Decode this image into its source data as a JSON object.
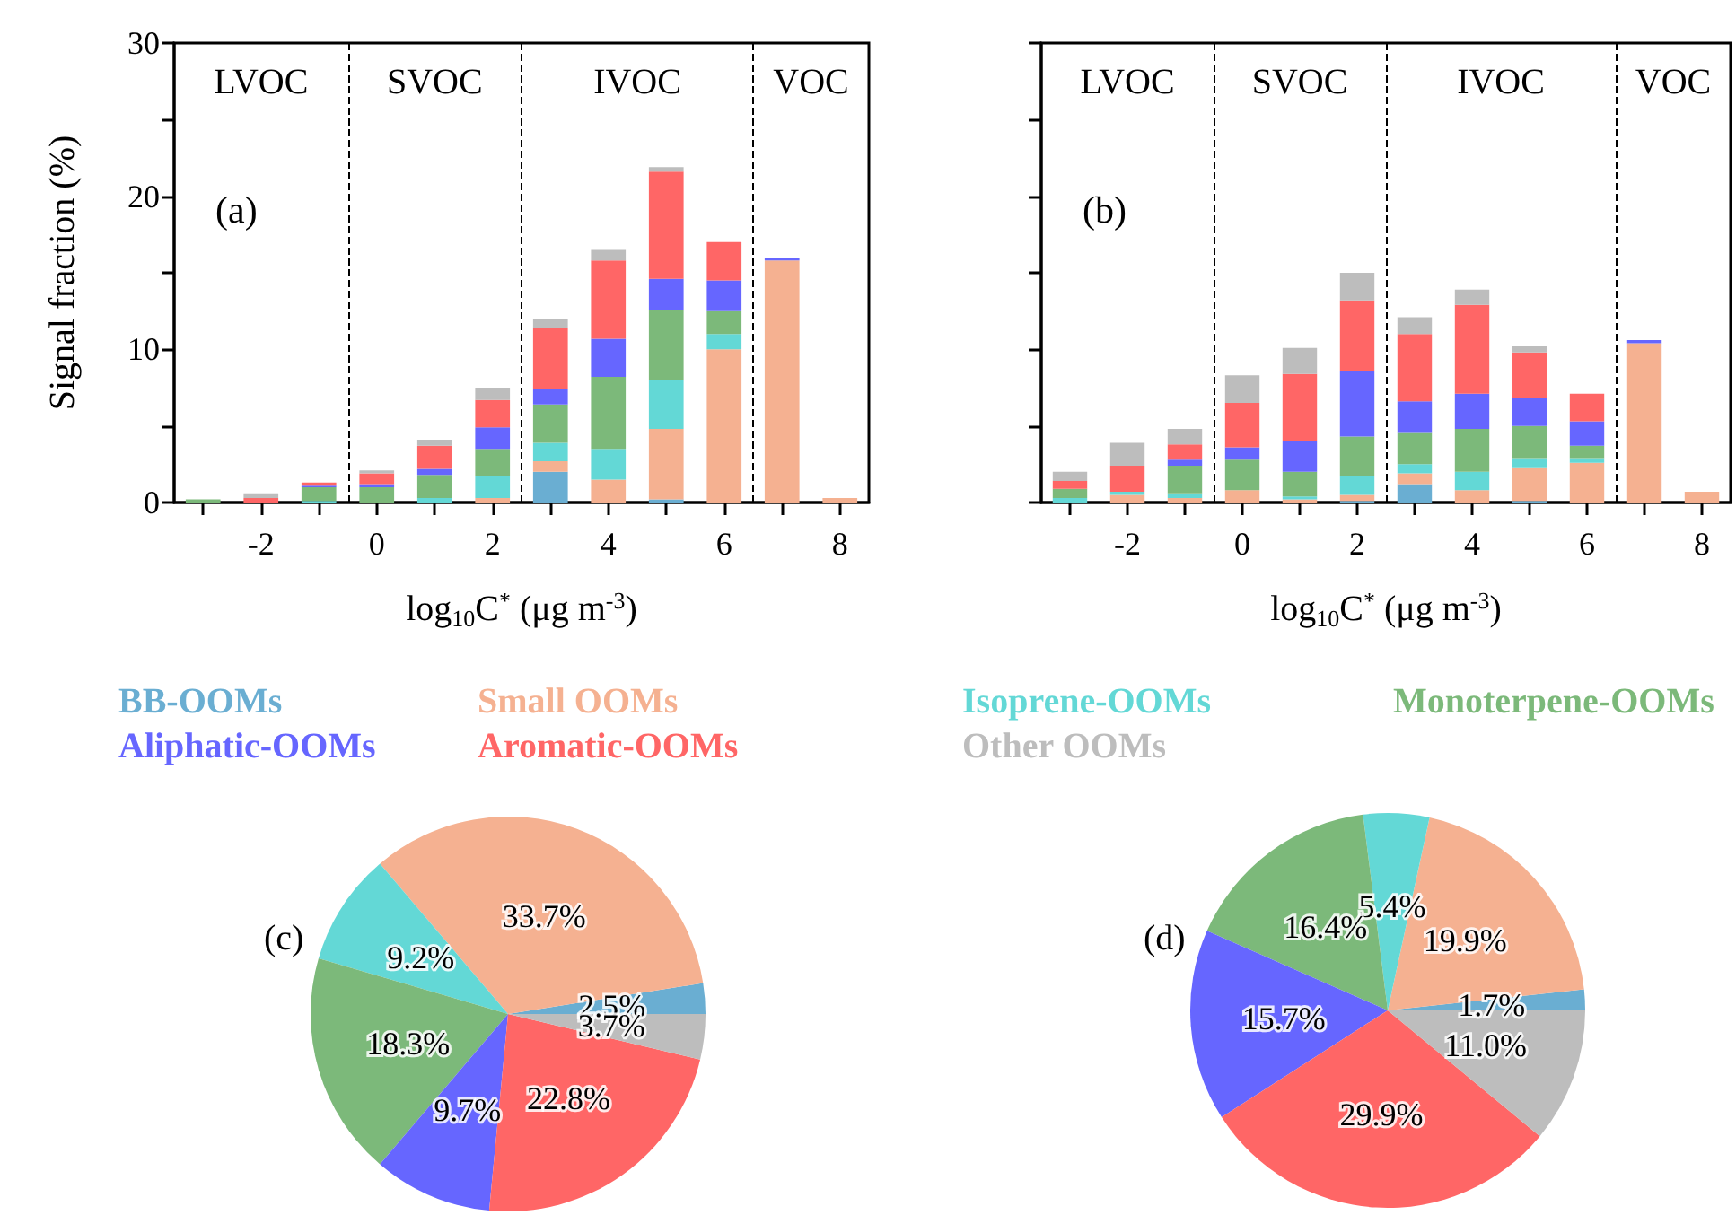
{
  "chart_data": [
    {
      "type": "bar",
      "title": "(a)",
      "xlabel": "log$_{10}$C$^{*}$ (μg m$^{-3}$)",
      "ylabel": "Signal fraction (%)",
      "stacked": true,
      "x": [
        -3,
        -2,
        -1,
        0,
        1,
        2,
        3,
        4,
        5,
        6,
        7,
        8
      ],
      "series": [
        {
          "name": "BB-OOMs",
          "color": "#6aaed2",
          "values": [
            0,
            0,
            0,
            0,
            0,
            0,
            2.0,
            0,
            0.2,
            0,
            0,
            0
          ]
        },
        {
          "name": "Small OOMs",
          "color": "#f5b191",
          "values": [
            0,
            0,
            0,
            0,
            0,
            0.3,
            0.7,
            1.5,
            4.6,
            10.0,
            15.8,
            0.3
          ]
        },
        {
          "name": "Isoprene-OOMs",
          "color": "#63d8d6",
          "values": [
            0,
            0,
            0.1,
            0,
            0.3,
            1.4,
            1.2,
            2.0,
            3.2,
            1.0,
            0,
            0
          ]
        },
        {
          "name": "Monoterpene-OOMs",
          "color": "#7cb97a",
          "values": [
            0.2,
            0,
            0.9,
            1.0,
            1.5,
            1.8,
            2.5,
            4.7,
            4.6,
            1.5,
            0,
            0
          ]
        },
        {
          "name": "Aliphatic-OOMs",
          "color": "#6666ff",
          "values": [
            0,
            0,
            0.1,
            0.2,
            0.4,
            1.4,
            1.0,
            2.5,
            2.0,
            2.0,
            0.2,
            0
          ]
        },
        {
          "name": "Aromatic-OOMs",
          "color": "#ff6666",
          "values": [
            0,
            0.3,
            0.2,
            0.7,
            1.5,
            1.8,
            4.0,
            5.1,
            7.0,
            2.5,
            0,
            0
          ]
        },
        {
          "name": "Other OOMs",
          "color": "#bdbdbd",
          "values": [
            0,
            0.3,
            null,
            0.2,
            0.4,
            0.8,
            0.6,
            0.7,
            0.3,
            0,
            0,
            0
          ]
        }
      ],
      "xlim": [
        -3.5,
        8.5
      ],
      "ylim": [
        0,
        30
      ],
      "xticks": [
        {
          "value": -3,
          "label": null
        },
        -2,
        {
          "value": -1,
          "label": null
        },
        0,
        {
          "value": 1,
          "label": null
        },
        2,
        {
          "value": 3,
          "label": null
        },
        4,
        {
          "value": 5,
          "label": null
        },
        6,
        {
          "value": 7,
          "label": null
        },
        8
      ],
      "yticks": [
        0,
        {
          "value": 5,
          "label": null
        },
        10,
        {
          "value": 15,
          "label": null
        },
        20,
        {
          "value": 25,
          "label": null
        },
        30
      ],
      "ref_lines": [
        {
          "axis": "x",
          "value": -0.5,
          "color": "#000000",
          "line_style": "dashed"
        },
        {
          "axis": "x",
          "value": 2.5,
          "color": "#000000",
          "line_style": "dashed"
        },
        {
          "axis": "x",
          "value": 6.5,
          "color": "#000000",
          "line_style": "dashed"
        }
      ],
      "annotations": [
        "LVOC",
        "SVOC",
        "IVOC",
        "VOC"
      ],
      "legend": "bottom"
    },
    {
      "type": "bar",
      "title": "(b)",
      "xlabel": "log$_{10}$C$^{*}$ (μg m$^{-3}$)",
      "stacked": true,
      "x": [
        -3,
        -2,
        -1,
        0,
        1,
        2,
        3,
        4,
        5,
        6,
        7,
        8
      ],
      "series": [
        {
          "color": "#6aaed2",
          "values": [
            0,
            0,
            0,
            0,
            0,
            0.1,
            1.2,
            0,
            0.1,
            0,
            0,
            0
          ]
        },
        {
          "color": "#f5b191",
          "values": [
            0,
            0.5,
            0.3,
            0.8,
            0.2,
            0.4,
            0.7,
            0.8,
            2.2,
            2.6,
            10.4,
            0.7
          ]
        },
        {
          "color": "#63d8d6",
          "values": [
            0.3,
            0.2,
            0.3,
            0,
            0.2,
            1.2,
            0.6,
            1.2,
            0.6,
            0.3,
            0,
            0
          ]
        },
        {
          "color": "#7cb97a",
          "values": [
            0.6,
            0,
            1.8,
            2.0,
            1.6,
            2.6,
            2.1,
            2.8,
            2.1,
            0.8,
            0,
            0
          ]
        },
        {
          "color": "#6666ff",
          "values": [
            0,
            0,
            0.4,
            0.8,
            2.0,
            4.3,
            2.0,
            2.3,
            1.8,
            1.6,
            0.2,
            0
          ]
        },
        {
          "color": "#ff6666",
          "values": [
            0.5,
            1.7,
            1.0,
            2.9,
            4.4,
            4.6,
            4.4,
            5.8,
            3.0,
            1.8,
            0,
            0
          ]
        },
        {
          "color": "#bdbdbd",
          "values": [
            0.6,
            1.5,
            1.0,
            1.8,
            1.7,
            1.8,
            1.1,
            1.0,
            0.4,
            0,
            0,
            0
          ]
        }
      ],
      "xlim": [
        -3.5,
        8.5
      ],
      "ylim": [
        0,
        30
      ],
      "xticks": [
        {
          "value": -3,
          "label": null
        },
        -2,
        {
          "value": -1,
          "label": null
        },
        0,
        {
          "value": 1,
          "label": null
        },
        2,
        {
          "value": 3,
          "label": null
        },
        4,
        {
          "value": 5,
          "label": null
        },
        6,
        {
          "value": 7,
          "label": null
        },
        8
      ],
      "yticks": [
        0,
        {
          "value": 5,
          "label": null
        },
        10,
        {
          "value": 15,
          "label": null
        },
        20,
        {
          "value": 25,
          "label": null
        },
        30
      ],
      "ref_lines": [
        {
          "axis": "x",
          "value": -0.5,
          "color": "#000000",
          "line_style": "dashed"
        },
        {
          "axis": "x",
          "value": 2.5,
          "color": "#000000",
          "line_style": "dashed"
        },
        {
          "axis": "x",
          "value": 6.5,
          "color": "#000000",
          "line_style": "dashed"
        }
      ],
      "annotations": [
        "LVOC",
        "SVOC",
        "IVOC",
        "VOC"
      ],
      "tick_labels": "x"
    },
    {
      "type": "pie",
      "title": "(c)",
      "categories": [
        null,
        null,
        null,
        null,
        null,
        null,
        null
      ],
      "values": [
        2.5,
        33.7,
        9.2,
        18.3,
        9.7,
        22.8,
        3.7
      ],
      "value_labels": [
        "2.5%",
        "33.7%",
        "9.2%",
        "18.3%",
        "9.7%",
        "22.8%",
        "3.7%"
      ],
      "colors": [
        "#6aaed2",
        "#f5b191",
        "#63d8d6",
        "#7cb97a",
        "#6666ff",
        "#ff6666",
        "#bdbdbd"
      ]
    },
    {
      "type": "pie",
      "title": "(d)",
      "categories": [
        null,
        null,
        null,
        null,
        null,
        null,
        null
      ],
      "values": [
        1.7,
        19.9,
        5.4,
        16.4,
        15.7,
        29.9,
        11.0
      ],
      "value_labels": [
        "1.7%",
        "19.9%",
        "5.4%",
        "16.4%",
        "15.7%",
        "29.9%",
        "11.0%"
      ],
      "colors": [
        "#6aaed2",
        "#f5b191",
        "#63d8d6",
        "#7cb97a",
        "#6666ff",
        "#ff6666",
        "#bdbdbd"
      ]
    }
  ]
}
